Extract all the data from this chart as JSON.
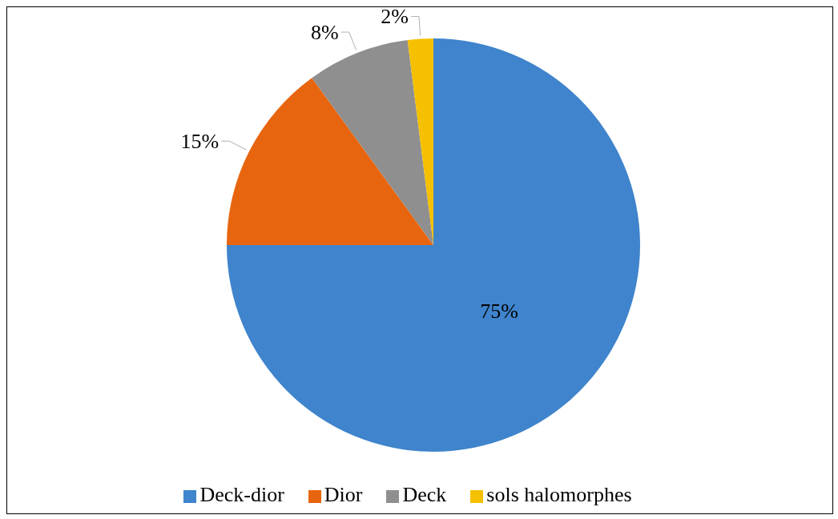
{
  "chart_data": {
    "type": "pie",
    "categories": [
      "Deck-dior",
      "Dior",
      "Deck",
      "sols halomorphes"
    ],
    "values": [
      75,
      15,
      8,
      2
    ],
    "colors": [
      "#3f84cc",
      "#e8650f",
      "#8f8f8f",
      "#f5c000"
    ],
    "value_labels": [
      "75%",
      "15%",
      "8%",
      "2%"
    ],
    "legend": "bottom"
  }
}
